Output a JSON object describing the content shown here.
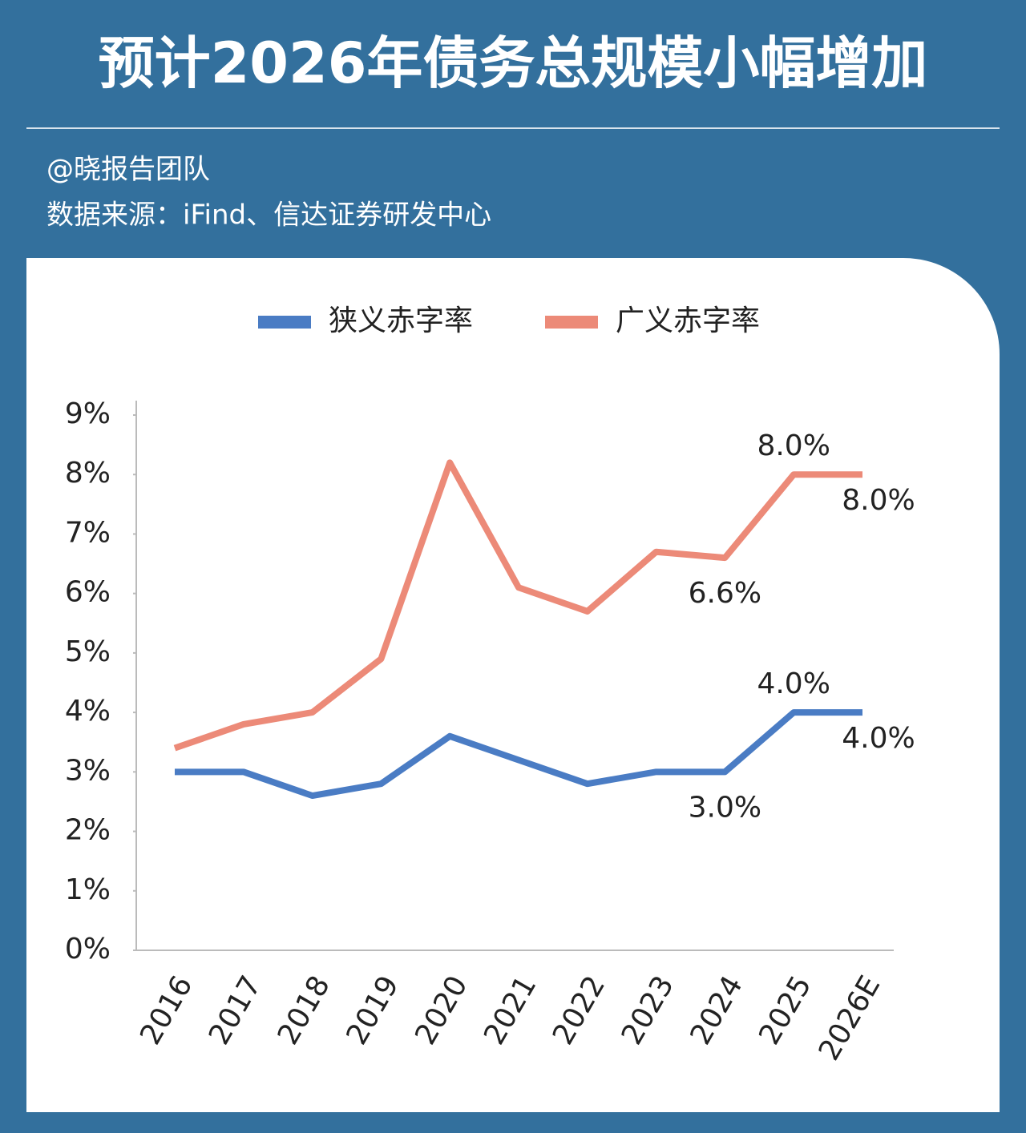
{
  "header": {
    "title": "预计2026年债务总规模小幅增加",
    "author": "@晓报告团队",
    "source": "数据来源：iFind、信达证券研发中心"
  },
  "chart_data": {
    "type": "line",
    "categories": [
      "2016",
      "2017",
      "2018",
      "2019",
      "2020",
      "2021",
      "2022",
      "2023",
      "2024",
      "2025",
      "2026E"
    ],
    "series": [
      {
        "name": "狭义赤字率",
        "color": "#4a7cc4",
        "values": [
          3.0,
          3.0,
          2.6,
          2.8,
          3.6,
          3.2,
          2.8,
          3.0,
          3.0,
          4.0,
          4.0
        ],
        "value_labels": [
          null,
          null,
          null,
          null,
          null,
          null,
          null,
          null,
          "3.0%",
          "4.0%",
          "4.0%"
        ]
      },
      {
        "name": "广义赤字率",
        "color": "#ec8a78",
        "values": [
          3.4,
          3.8,
          4.0,
          4.9,
          8.2,
          6.1,
          5.7,
          6.7,
          6.6,
          8.0,
          8.0
        ],
        "value_labels": [
          null,
          null,
          null,
          null,
          null,
          null,
          null,
          null,
          "6.6%",
          "8.0%",
          "8.0%"
        ]
      }
    ],
    "ylim": [
      0,
      9
    ],
    "yticks": [
      {
        "value": 0,
        "label": "0%"
      },
      {
        "value": 1,
        "label": "1%"
      },
      {
        "value": 2,
        "label": "2%"
      },
      {
        "value": 3,
        "label": "3%"
      },
      {
        "value": 4,
        "label": "4%"
      },
      {
        "value": 5,
        "label": "5%"
      },
      {
        "value": 6,
        "label": "6%"
      },
      {
        "value": 7,
        "label": "7%"
      },
      {
        "value": 8,
        "label": "8%"
      },
      {
        "value": 9,
        "label": "9%"
      }
    ],
    "grid": false,
    "legend": "top"
  }
}
